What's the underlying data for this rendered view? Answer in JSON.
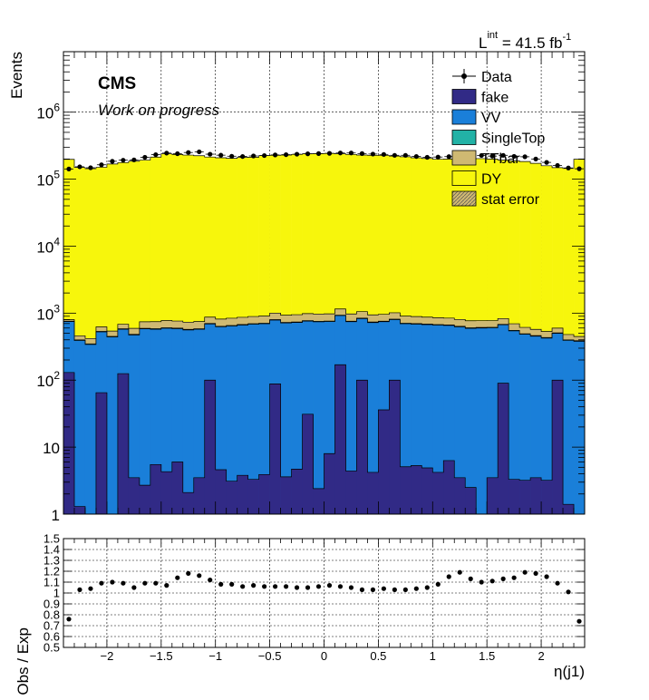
{
  "lumi": {
    "base": "L",
    "sup": "int",
    "value": " = 41.5 fb",
    "exp": "-1"
  },
  "cms_label": "CMS",
  "status_label": "Work on progress",
  "colors": {
    "fake": "#312a86",
    "VV": "#1a7fd9",
    "SingleTop": "#22b2a6",
    "TTbar": "#cfb972",
    "DY": "#f7f60c"
  },
  "legend": [
    {
      "label": "Data",
      "style": "marker"
    },
    {
      "label": "fake",
      "style": "fill",
      "color": "#312a86"
    },
    {
      "label": "VV",
      "style": "fill",
      "color": "#1a7fd9"
    },
    {
      "label": "SingleTop",
      "style": "fill",
      "color": "#22b2a6"
    },
    {
      "label": "TTbar",
      "style": "fill",
      "color": "#cfb972"
    },
    {
      "label": "DY",
      "style": "fill",
      "color": "#f7f60c"
    },
    {
      "label": "stat error",
      "style": "hatch",
      "color": "#cfb972"
    }
  ],
  "chart_data": [
    {
      "type": "bar",
      "stacked": true,
      "ylabel": "Events",
      "yscale": "log",
      "xlim": [
        -2.4,
        2.4
      ],
      "ylim": [
        1,
        8000000
      ],
      "ytick_labels": [
        "1",
        "10",
        "10^2",
        "10^3",
        "10^4",
        "10^5",
        "10^6"
      ],
      "grid": true,
      "bins": 48,
      "series": [
        {
          "name": "fake",
          "values": [
            130,
            1.3,
            0.5,
            65,
            0.5,
            125,
            3.5,
            2.7,
            5.5,
            4.3,
            6,
            2.1,
            3.5,
            100,
            4.6,
            3.1,
            3.8,
            3.3,
            3.9,
            88,
            3.6,
            4.7,
            31,
            2.4,
            8,
            170,
            4.4,
            100,
            4.2,
            36,
            100,
            5.1,
            5.3,
            4.9,
            4.2,
            6.3,
            3.5,
            2.5,
            0.5,
            3.5,
            90,
            3.3,
            3.2,
            3.5,
            3.2,
            100,
            1.4,
            0.5
          ]
        },
        {
          "name": "VV",
          "values": [
            620,
            390,
            340,
            460,
            440,
            450,
            470,
            580,
            570,
            590,
            580,
            560,
            570,
            590,
            620,
            640,
            660,
            680,
            690,
            700,
            710,
            720,
            730,
            740,
            740,
            750,
            740,
            730,
            720,
            710,
            700,
            690,
            680,
            670,
            660,
            650,
            620,
            590,
            600,
            600,
            580,
            540,
            480,
            450,
            420,
            400,
            390,
            380
          ]
        },
        {
          "name": "SingleTop",
          "values": [
            10,
            8,
            8,
            9,
            9,
            9,
            10,
            11,
            11,
            11,
            11,
            11,
            11,
            12,
            12,
            12,
            13,
            13,
            13,
            13,
            13,
            13,
            13,
            14,
            14,
            14,
            14,
            13,
            13,
            13,
            13,
            13,
            13,
            13,
            12,
            12,
            12,
            12,
            11,
            11,
            11,
            11,
            10,
            9,
            9,
            8,
            8,
            8
          ]
        },
        {
          "name": "TTbar",
          "values": [
            40,
            60,
            70,
            90,
            90,
            100,
            110,
            150,
            160,
            170,
            165,
            160,
            165,
            170,
            180,
            185,
            190,
            195,
            200,
            200,
            205,
            210,
            210,
            215,
            215,
            220,
            215,
            210,
            205,
            200,
            200,
            195,
            190,
            185,
            180,
            175,
            170,
            165,
            160,
            160,
            150,
            140,
            120,
            110,
            100,
            90,
            80,
            60
          ]
        },
        {
          "name": "DY",
          "values": [
            197000,
            149000,
            143000,
            150000,
            168000,
            176000,
            185000,
            192000,
            213000,
            238000,
            233000,
            228000,
            223000,
            213000,
            208000,
            204000,
            210000,
            212000,
            224000,
            226000,
            228000,
            233000,
            238000,
            240000,
            241000,
            238000,
            233000,
            228000,
            226000,
            225000,
            220000,
            215000,
            208000,
            203000,
            198000,
            199000,
            200000,
            200000,
            202000,
            199000,
            192000,
            187000,
            183000,
            172000,
            158000,
            148000,
            144000,
            198000
          ]
        },
        {
          "name": "Data",
          "values": [
            142000,
            153000,
            148000,
            164000,
            185000,
            192000,
            194000,
            212000,
            232000,
            245000,
            240000,
            250000,
            256000,
            236000,
            228000,
            220000,
            218000,
            222000,
            225000,
            230000,
            232000,
            236000,
            239000,
            241000,
            243000,
            246000,
            246000,
            241000,
            237000,
            234000,
            227000,
            227000,
            218000,
            212000,
            214000,
            217000,
            222000,
            222000,
            226000,
            221000,
            227000,
            219000,
            216000,
            200000,
            178000,
            160000,
            147000,
            143000
          ]
        }
      ]
    },
    {
      "type": "scatter",
      "xlabel": "η(j1)",
      "ylabel": "Obs / Exp",
      "xlim": [
        -2.4,
        2.4
      ],
      "ylim": [
        0.5,
        1.5
      ],
      "xtick_labels": [
        "−2",
        "−1.5",
        "−1",
        "−0.5",
        "0",
        "0.5",
        "1",
        "1.5",
        "2"
      ],
      "ytick_labels": [
        "0.5",
        "0.6",
        "0.7",
        "0.8",
        "0.9",
        "1",
        "1.1",
        "1.2",
        "1.3",
        "1.4",
        "1.5"
      ],
      "grid": true,
      "x": [
        -2.35,
        -2.25,
        -2.15,
        -2.05,
        -1.95,
        -1.85,
        -1.75,
        -1.65,
        -1.55,
        -1.45,
        -1.35,
        -1.25,
        -1.15,
        -1.05,
        -0.95,
        -0.85,
        -0.75,
        -0.65,
        -0.55,
        -0.45,
        -0.35,
        -0.25,
        -0.15,
        -0.05,
        0.05,
        0.15,
        0.25,
        0.35,
        0.45,
        0.55,
        0.65,
        0.75,
        0.85,
        0.95,
        1.05,
        1.15,
        1.25,
        1.35,
        1.45,
        1.55,
        1.65,
        1.75,
        1.85,
        1.95,
        2.05,
        2.15,
        2.25,
        2.35
      ],
      "y": [
        0.76,
        1.03,
        1.04,
        1.09,
        1.1,
        1.09,
        1.05,
        1.09,
        1.09,
        1.07,
        1.14,
        1.18,
        1.16,
        1.12,
        1.08,
        1.08,
        1.06,
        1.07,
        1.06,
        1.06,
        1.06,
        1.05,
        1.05,
        1.06,
        1.07,
        1.06,
        1.05,
        1.03,
        1.03,
        1.04,
        1.03,
        1.03,
        1.04,
        1.05,
        1.08,
        1.15,
        1.19,
        1.13,
        1.1,
        1.11,
        1.13,
        1.14,
        1.19,
        1.18,
        1.15,
        1.09,
        1.01,
        0.74
      ]
    }
  ]
}
